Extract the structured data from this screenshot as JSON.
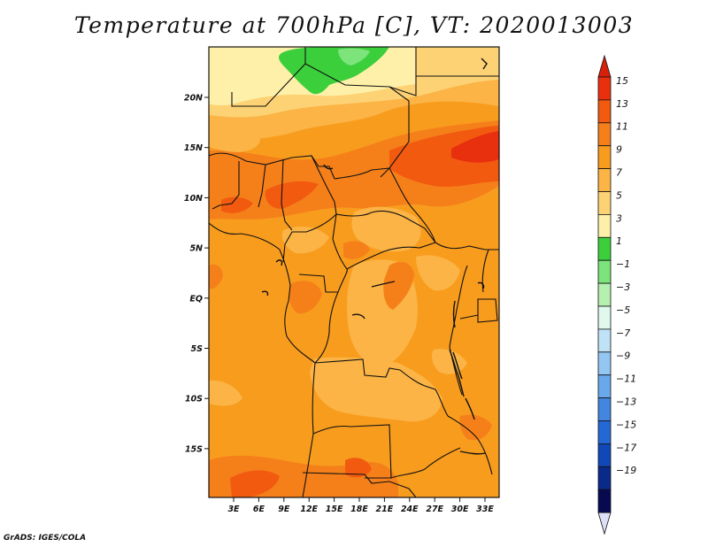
{
  "title": "Temperature at 700hPa [C], VT: 2020013003",
  "credit": "GrADS: IGES/COLA",
  "map": {
    "lat_ticks": [
      "20N",
      "15N",
      "10N",
      "5N",
      "EQ",
      "5S",
      "10S",
      "15S"
    ],
    "lon_ticks": [
      "3E",
      "6E",
      "9E",
      "12E",
      "15E",
      "18E",
      "21E",
      "24E",
      "27E",
      "30E",
      "33E"
    ],
    "lon_range": [
      0,
      35
    ],
    "lat_range": [
      -20,
      25
    ]
  },
  "colorbar": {
    "labels": [
      "15",
      "13",
      "11",
      "9",
      "7",
      "5",
      "3",
      "1",
      "−1",
      "−3",
      "−5",
      "−7",
      "−9",
      "−11",
      "−13",
      "−15",
      "−17",
      "−19"
    ],
    "colors": [
      "#e8300f",
      "#f25a10",
      "#f5801a",
      "#f89c1e",
      "#fbb445",
      "#fdd275",
      "#fef0a8",
      "#3ccf3c",
      "#7de37b",
      "#b5f0b0",
      "#e0f8ee",
      "#bfe2f7",
      "#93c7f2",
      "#6aa8ec",
      "#4286e0",
      "#2468d6",
      "#1048b8",
      "#0a2a8a",
      "#070a50"
    ],
    "over_color": "#d8200a",
    "under_color": "#dde0f5"
  }
}
